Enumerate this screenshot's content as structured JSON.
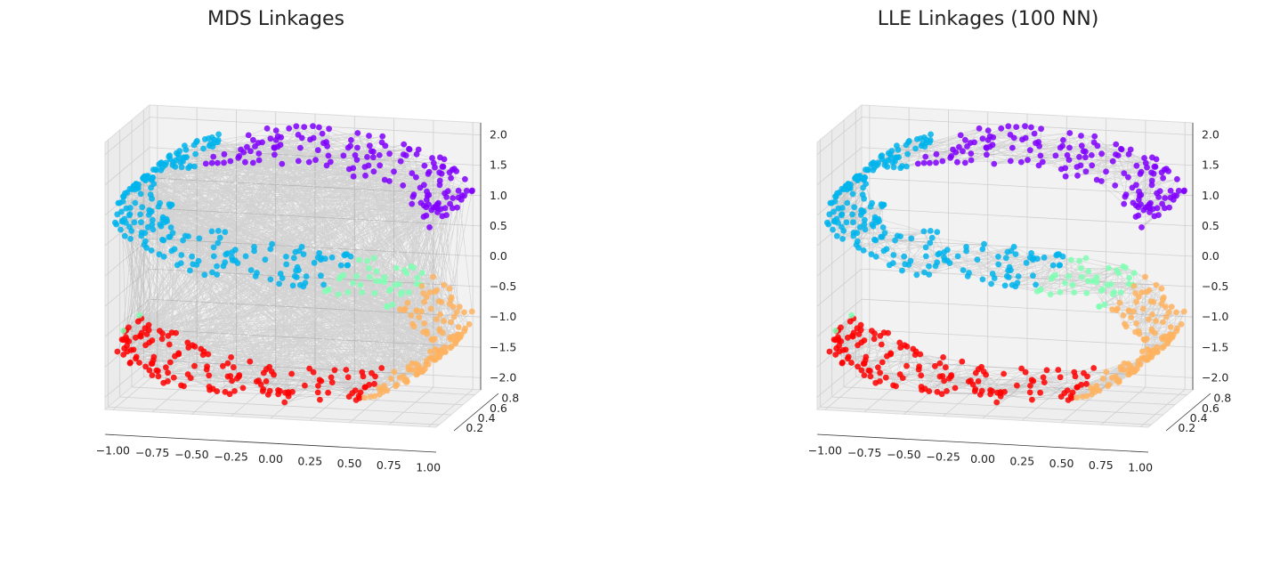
{
  "chart_data": [
    {
      "type": "scatter",
      "projection": "3d",
      "title": "MDS Linkages",
      "x_ticks": [
        "−1.00",
        "−0.75",
        "−0.50",
        "−0.25",
        "0.00",
        "0.25",
        "0.50",
        "0.75",
        "1.00"
      ],
      "y_ticks": [
        "0.2",
        "0.4",
        "0.6",
        "0.8"
      ],
      "z_ticks": [
        "2.0",
        "1.5",
        "1.0",
        "0.5",
        "0.0",
        "−0.5",
        "−1.0",
        "−1.5",
        "−2.0"
      ],
      "xlim": [
        -1.05,
        1.05
      ],
      "ylim": [
        0.15,
        0.9
      ],
      "zlim": [
        -2.2,
        2.2
      ],
      "grid": true,
      "edge_style": "dense random linkages across all clusters",
      "clusters": [
        {
          "color": "#8000ff",
          "region": "top arc (purple)"
        },
        {
          "color": "#00b4ec",
          "region": "upper-left arc (blue)"
        },
        {
          "color": "#80ffb4",
          "region": "middle band (green)"
        },
        {
          "color": "#ffb360",
          "region": "lower-right arc (orange)"
        },
        {
          "color": "#ff0000",
          "region": "bottom arc (red)"
        }
      ]
    },
    {
      "type": "scatter",
      "projection": "3d",
      "title": "LLE Linkages (100 NN)",
      "x_ticks": [
        "−1.00",
        "−0.75",
        "−0.50",
        "−0.25",
        "0.00",
        "0.25",
        "0.50",
        "0.75",
        "1.00"
      ],
      "y_ticks": [
        "0.2",
        "0.4",
        "0.6",
        "0.8"
      ],
      "z_ticks": [
        "2.0",
        "1.5",
        "1.0",
        "0.5",
        "0.0",
        "−0.5",
        "−1.0",
        "−1.5",
        "−2.0"
      ],
      "xlim": [
        -1.05,
        1.05
      ],
      "ylim": [
        0.15,
        0.9
      ],
      "zlim": [
        -2.2,
        2.2
      ],
      "grid": true,
      "edge_style": "local nearest-neighbour linkages along the S curve",
      "clusters": [
        {
          "color": "#8000ff",
          "region": "top arc (purple)"
        },
        {
          "color": "#00b4ec",
          "region": "upper-left arc (blue)"
        },
        {
          "color": "#80ffb4",
          "region": "middle band (green)"
        },
        {
          "color": "#ffb360",
          "region": "lower-right arc (orange)"
        },
        {
          "color": "#ff0000",
          "region": "bottom arc (red)"
        }
      ]
    }
  ]
}
